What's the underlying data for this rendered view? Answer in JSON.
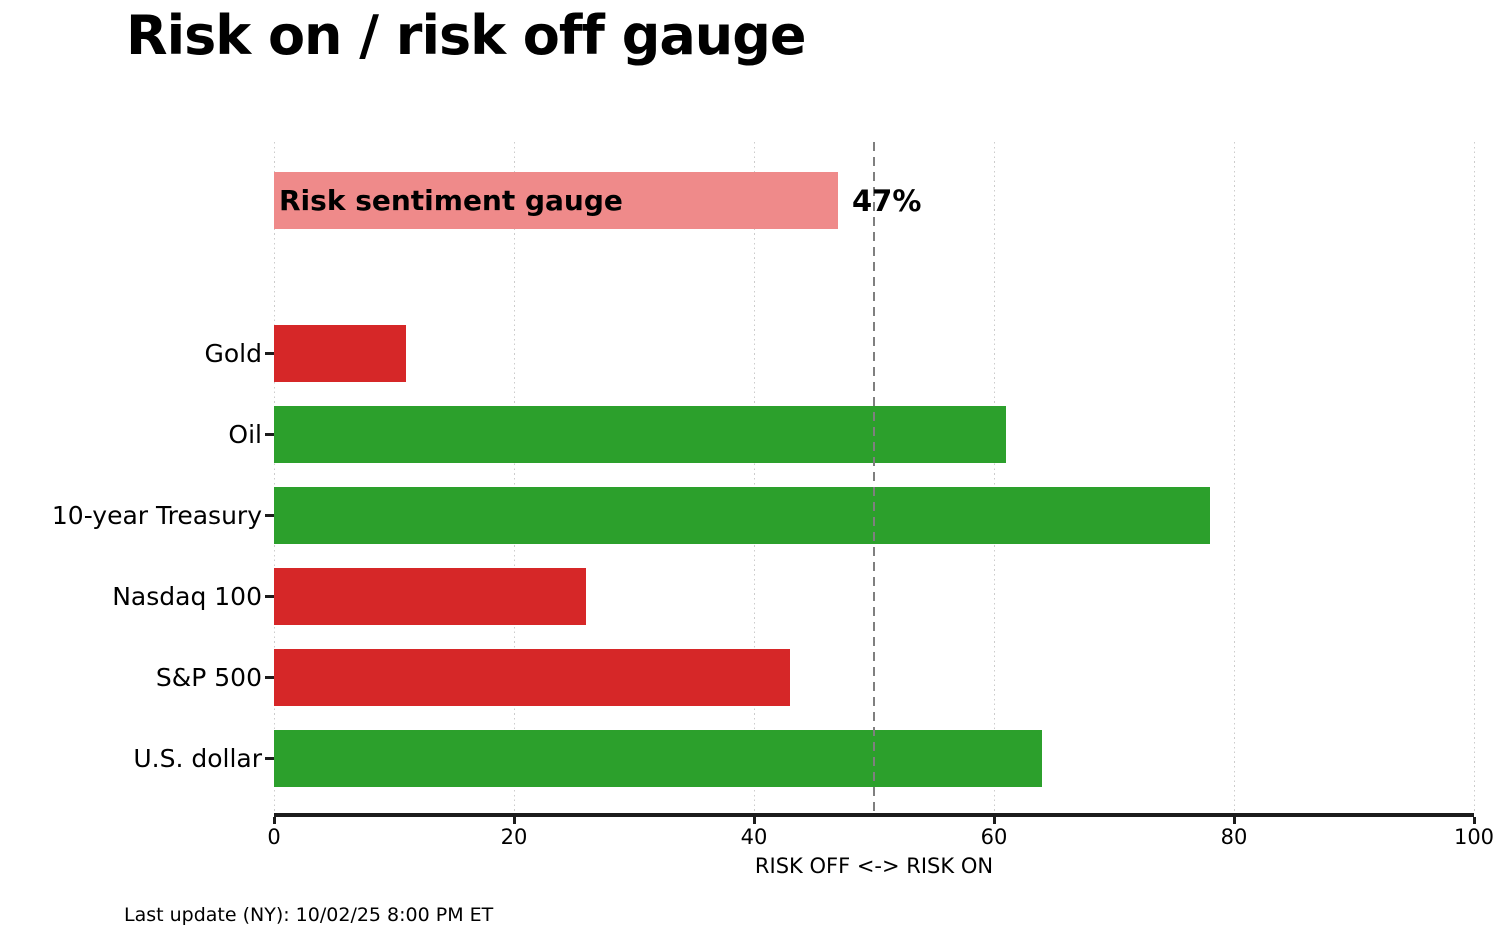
{
  "title": "Risk on / risk off gauge",
  "footer": "Last update (NY): 10/02/25 8:00 PM ET",
  "colors": {
    "risk_off_red": "#d62728",
    "risk_on_green": "#2ca02c",
    "gauge_pink": "#ef8a8a",
    "reference_line_gray": "#7f7f7f",
    "gridline_gray": "#cccccc"
  },
  "chart_data": {
    "type": "bar",
    "orientation": "horizontal",
    "title": "Risk on / risk off gauge",
    "gauge": {
      "label": "Risk sentiment gauge",
      "value": 47,
      "display": "47%",
      "color": "#ef8a8a"
    },
    "categories": [
      "Gold",
      "Oil",
      "10-year Treasury",
      "Nasdaq 100",
      "S&P 500",
      "U.S. dollar"
    ],
    "values": [
      11,
      61,
      78,
      26,
      43,
      64
    ],
    "colors": [
      "#d62728",
      "#2ca02c",
      "#2ca02c",
      "#d62728",
      "#d62728",
      "#2ca02c"
    ],
    "xlabel": "RISK OFF <-> RISK ON",
    "xlim": [
      0,
      100
    ],
    "xticks": [
      0,
      20,
      40,
      60,
      80,
      100
    ],
    "reference_line": 50,
    "grid": "vertical dotted at xticks",
    "legend": "none"
  }
}
